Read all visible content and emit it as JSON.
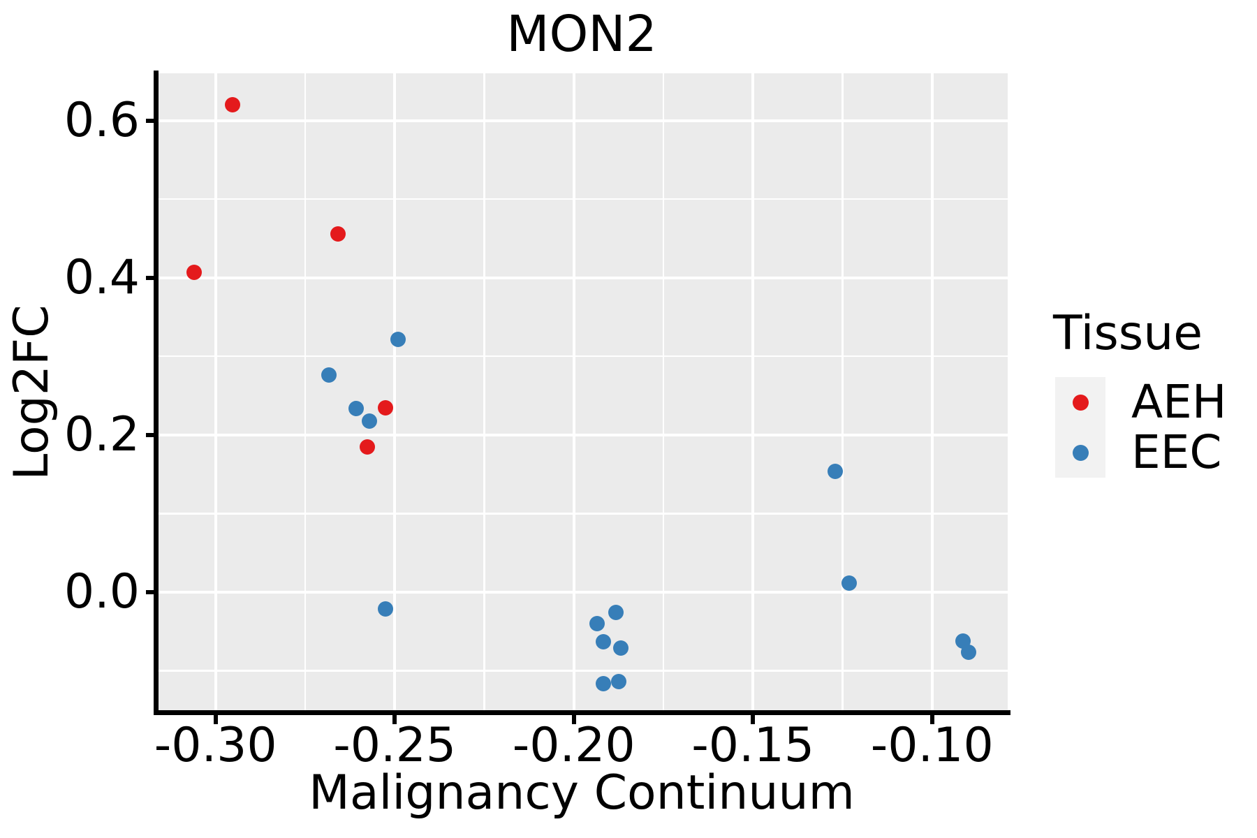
{
  "title": "MON2",
  "colors": {
    "panel_background": "#EBEBEB",
    "grid": "#FFFFFF",
    "axis": "#000000",
    "text": "#000000",
    "aeh": "#E41A1C",
    "eec": "#377EB8",
    "legend_key_background": "#F2F2F2"
  },
  "chart_data": {
    "type": "scatter",
    "title": "MON2",
    "xlabel": "Malignancy Continuum",
    "ylabel": "Log2FC",
    "xlim": [
      -0.3167,
      -0.0789
    ],
    "ylim": [
      -0.153,
      0.66
    ],
    "grid": true,
    "grid_style": "white major+minor gridlines on grey panel (ggplot style)",
    "x_ticks": {
      "values": [
        -0.3,
        -0.25,
        -0.2,
        -0.15,
        -0.1
      ],
      "labels": [
        "-0.30",
        "-0.25",
        "-0.20",
        "-0.15",
        "-0.10"
      ],
      "minor": [
        -0.275,
        -0.225,
        -0.175,
        -0.125
      ]
    },
    "y_ticks": {
      "values": [
        0.0,
        0.2,
        0.4,
        0.6
      ],
      "labels": [
        "0.0",
        "0.2",
        "0.4",
        "0.6"
      ],
      "minor": [
        -0.1,
        0.1,
        0.3,
        0.5
      ]
    },
    "legend": {
      "title": "Tissue",
      "position": "right"
    },
    "series": [
      {
        "name": "AEH",
        "color": "#E41A1C",
        "points": [
          [
            -0.2953,
            0.62
          ],
          [
            -0.2658,
            0.456
          ],
          [
            -0.3059,
            0.407
          ],
          [
            -0.2526,
            0.2345
          ],
          [
            -0.2576,
            0.1847
          ]
        ]
      },
      {
        "name": "EEC",
        "color": "#377EB8",
        "points": [
          [
            -0.2491,
            0.3216
          ],
          [
            -0.2684,
            0.2763
          ],
          [
            -0.2608,
            0.2336
          ],
          [
            -0.2571,
            0.2176
          ],
          [
            -0.2526,
            -0.0217
          ],
          [
            -0.1883,
            -0.0256
          ],
          [
            -0.1935,
            -0.0401
          ],
          [
            -0.1917,
            -0.0629
          ],
          [
            -0.1869,
            -0.0712
          ],
          [
            -0.1917,
            -0.1162
          ],
          [
            -0.1875,
            -0.1135
          ],
          [
            -0.1271,
            0.1536
          ],
          [
            -0.1232,
            0.0112
          ],
          [
            -0.0914,
            -0.062
          ],
          [
            -0.0898,
            -0.0762
          ]
        ]
      }
    ]
  }
}
